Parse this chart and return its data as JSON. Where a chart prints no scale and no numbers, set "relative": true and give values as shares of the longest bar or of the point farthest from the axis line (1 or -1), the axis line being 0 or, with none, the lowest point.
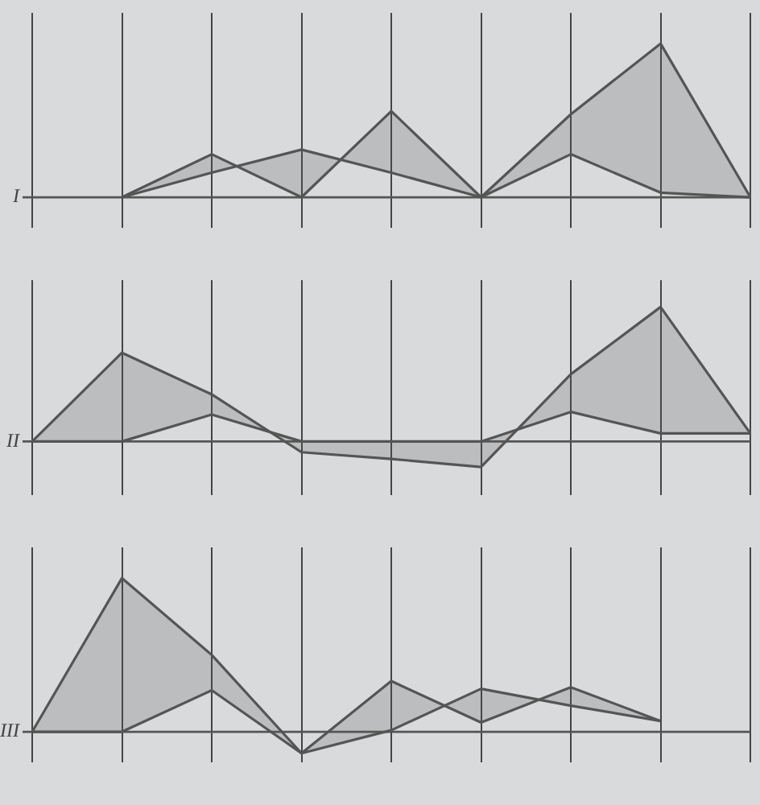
{
  "chart_data": [
    {
      "type": "line",
      "ylabel": "I",
      "relative": true,
      "categories": [
        null,
        null,
        null,
        null,
        null,
        null,
        null,
        null,
        null
      ],
      "grid": "x",
      "marker": "none",
      "ref_lines": [
        {
          "axis": "y",
          "value": 0,
          "color": "#555555"
        }
      ],
      "series": [
        {
          "color": "#555555",
          "values": [
            null,
            0,
            0.28,
            0,
            0.56,
            0,
            0.54,
            1,
            0
          ],
          "lower": [
            null,
            0,
            0.16,
            0.31,
            0.16,
            0,
            0.28,
            0.03,
            0
          ],
          "upper": [
            null,
            0,
            0.28,
            0,
            0.56,
            0,
            0.54,
            1,
            0
          ]
        },
        {
          "color": "#555555",
          "values": [
            null,
            0,
            0.16,
            0.31,
            0.16,
            0,
            0.28,
            0.03,
            0
          ]
        }
      ]
    },
    {
      "type": "line",
      "ylabel": "II",
      "relative": true,
      "categories": [
        null,
        null,
        null,
        null,
        null,
        null,
        null,
        null,
        null
      ],
      "grid": "x",
      "marker": "none",
      "ref_lines": [
        {
          "axis": "y",
          "value": 0,
          "color": "#555555"
        }
      ],
      "series": [
        {
          "color": "#555555",
          "values": [
            0,
            0.66,
            0.35,
            -0.08,
            -0.13,
            -0.19,
            0.5,
            1,
            0.06
          ],
          "lower": [
            0,
            0,
            0.2,
            0,
            0,
            0,
            0.22,
            0.06,
            0.06
          ],
          "upper": [
            0,
            0.66,
            0.35,
            -0.08,
            -0.13,
            -0.19,
            0.5,
            1,
            0.06
          ]
        },
        {
          "color": "#555555",
          "values": [
            0,
            0,
            0.2,
            0,
            0,
            0,
            0.22,
            0.06,
            0.06
          ]
        }
      ]
    },
    {
      "type": "line",
      "ylabel": "III",
      "relative": true,
      "categories": [
        null,
        null,
        null,
        null,
        null,
        null,
        null,
        null,
        null
      ],
      "grid": "x",
      "marker": "none",
      "ref_lines": [
        {
          "axis": "y",
          "value": 0,
          "color": "#555555"
        }
      ],
      "series": [
        {
          "color": "#555555",
          "values": [
            0,
            1,
            0.5,
            -0.14,
            0.33,
            0.06,
            0.29,
            0.07,
            null
          ],
          "lower": [
            0,
            0,
            0.27,
            -0.14,
            0.01,
            0.28,
            0.17,
            0.07,
            null
          ],
          "upper": [
            0,
            1,
            0.5,
            -0.14,
            0.33,
            0.06,
            0.29,
            0.07,
            null
          ]
        },
        {
          "color": "#555555",
          "values": [
            0,
            0,
            0.27,
            -0.14,
            0.01,
            0.28,
            0.17,
            0.07,
            null
          ]
        }
      ]
    }
  ]
}
